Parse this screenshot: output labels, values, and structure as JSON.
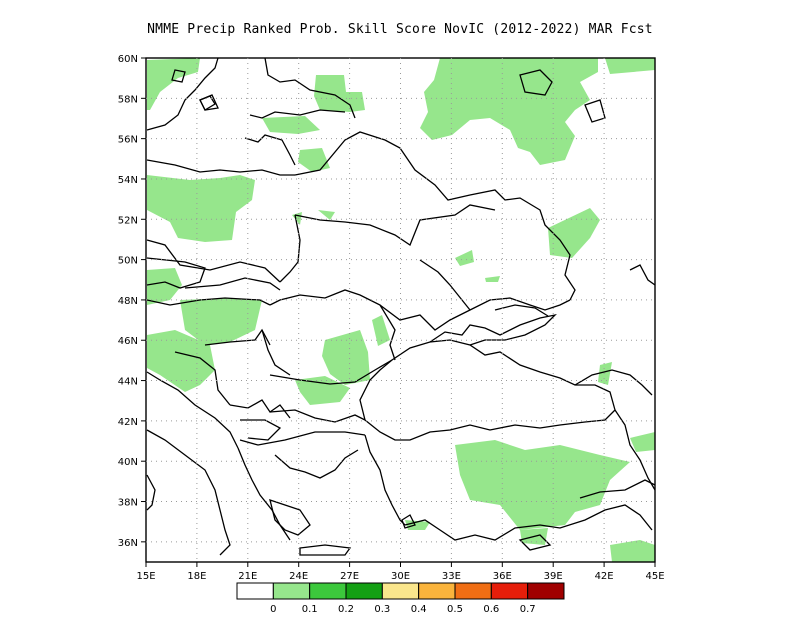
{
  "title": "NMME Precip Ranked Prob. Skill Score NovIC (2012-2022) MAR Fcst",
  "map": {
    "lon_range": [
      15,
      45
    ],
    "lat_range": [
      35,
      60
    ],
    "lon_ticks": [
      "15E",
      "18E",
      "21E",
      "24E",
      "27E",
      "30E",
      "33E",
      "36E",
      "39E",
      "42E",
      "45E"
    ],
    "lat_ticks": [
      "36N",
      "38N",
      "40N",
      "42N",
      "44N",
      "46N",
      "48N",
      "50N",
      "52N",
      "54N",
      "56N",
      "58N",
      "60N"
    ],
    "gridlines": "dotted"
  },
  "legend": {
    "labels": [
      "0",
      "0.1",
      "0.2",
      "0.3",
      "0.4",
      "0.5",
      "0.6",
      "0.7"
    ],
    "colors": [
      "#ffffff",
      "#96e68c",
      "#3cc83c",
      "#14a014",
      "#fae68c",
      "#fab43c",
      "#f06e14",
      "#e61e0a",
      "#a00000"
    ]
  }
}
